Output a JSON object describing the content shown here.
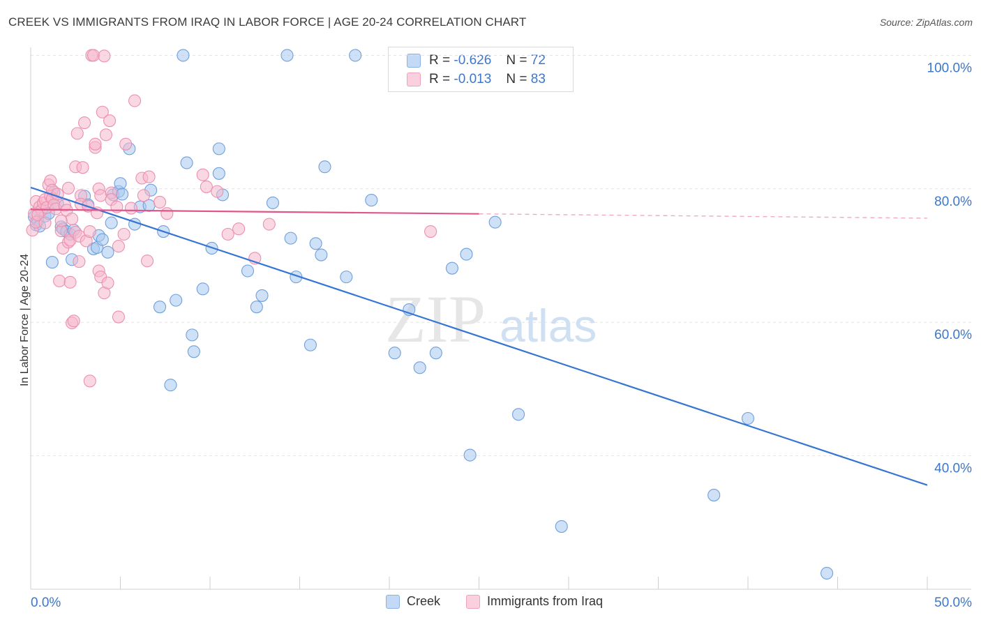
{
  "title": "CREEK VS IMMIGRANTS FROM IRAQ IN LABOR FORCE | AGE 20-24 CORRELATION CHART",
  "source": "Source: ZipAtlas.com",
  "watermark": {
    "zip": "ZIP",
    "atlas": "atlas"
  },
  "legend_stats": [
    {
      "r_label": "R =",
      "r_value": "-0.626",
      "n_label": "N =",
      "n_value": "72",
      "color": "#a8c8f0"
    },
    {
      "r_label": "R =",
      "r_value": "-0.013",
      "n_label": "N =",
      "n_value": "83",
      "color": "#f6b8cc"
    }
  ],
  "chart_data": {
    "type": "scatter",
    "title": "CREEK VS IMMIGRANTS FROM IRAQ IN LABOR FORCE | AGE 20-24 CORRELATION CHART",
    "xlabel": "",
    "ylabel": "In Labor Force | Age 20-24",
    "xlim": [
      0,
      50
    ],
    "ylim": [
      20,
      102
    ],
    "x_tick_labels": [
      "0.0%",
      "50.0%"
    ],
    "y_tick_labels": [
      {
        "value": 100,
        "label": "100.0%"
      },
      {
        "value": 80,
        "label": "80.0%"
      },
      {
        "value": 60,
        "label": "60.0%"
      },
      {
        "value": 40,
        "label": "40.0%"
      }
    ],
    "series": [
      {
        "name": "Creek",
        "color": "#a8c8f0",
        "edge": "#6f9fdc",
        "line_color": "#3575d3",
        "trend": {
          "x0": 0,
          "y0": 80.2,
          "x1": 50,
          "y1": 35.6,
          "solid_until": 50
        },
        "points": [
          [
            0.2,
            75.8
          ],
          [
            0.3,
            74.6
          ],
          [
            0.4,
            75.2
          ],
          [
            0.8,
            75.9
          ],
          [
            1.0,
            76.3
          ],
          [
            1.2,
            69.0
          ],
          [
            1.3,
            79.5
          ],
          [
            1.5,
            77.8
          ],
          [
            1.7,
            74.3
          ],
          [
            1.8,
            74.0
          ],
          [
            2.0,
            73.6
          ],
          [
            2.2,
            73.2
          ],
          [
            2.3,
            69.4
          ],
          [
            2.4,
            73.8
          ],
          [
            3.0,
            78.9
          ],
          [
            3.2,
            77.6
          ],
          [
            3.5,
            71.0
          ],
          [
            3.7,
            71.2
          ],
          [
            3.8,
            73.0
          ],
          [
            4.0,
            72.4
          ],
          [
            4.3,
            70.5
          ],
          [
            4.5,
            74.9
          ],
          [
            4.6,
            79.1
          ],
          [
            4.9,
            79.6
          ],
          [
            5.0,
            80.8
          ],
          [
            5.1,
            79.2
          ],
          [
            5.5,
            86.0
          ],
          [
            5.8,
            74.7
          ],
          [
            6.1,
            77.3
          ],
          [
            6.6,
            77.5
          ],
          [
            6.7,
            79.8
          ],
          [
            7.2,
            62.3
          ],
          [
            7.4,
            73.6
          ],
          [
            7.8,
            50.6
          ],
          [
            8.1,
            63.3
          ],
          [
            8.5,
            100.0
          ],
          [
            8.7,
            83.9
          ],
          [
            9.0,
            58.1
          ],
          [
            9.1,
            55.6
          ],
          [
            9.6,
            65.0
          ],
          [
            10.1,
            71.1
          ],
          [
            10.5,
            86.0
          ],
          [
            10.5,
            82.3
          ],
          [
            10.7,
            79.1
          ],
          [
            12.1,
            67.7
          ],
          [
            12.6,
            62.3
          ],
          [
            12.9,
            64.0
          ],
          [
            13.5,
            77.9
          ],
          [
            14.3,
            100.0
          ],
          [
            14.5,
            72.6
          ],
          [
            14.8,
            66.8
          ],
          [
            15.6,
            56.6
          ],
          [
            15.9,
            71.8
          ],
          [
            16.2,
            70.1
          ],
          [
            16.4,
            83.3
          ],
          [
            17.6,
            66.8
          ],
          [
            18.1,
            100.0
          ],
          [
            19.0,
            78.3
          ],
          [
            20.3,
            55.4
          ],
          [
            21.1,
            61.9
          ],
          [
            21.7,
            53.2
          ],
          [
            22.6,
            55.4
          ],
          [
            23.5,
            68.1
          ],
          [
            24.3,
            70.2
          ],
          [
            24.5,
            40.1
          ],
          [
            25.9,
            75.0
          ],
          [
            27.2,
            46.2
          ],
          [
            29.6,
            29.4
          ],
          [
            38.1,
            34.1
          ],
          [
            40.0,
            45.6
          ],
          [
            44.4,
            22.4
          ],
          [
            0.5,
            74.4
          ]
        ]
      },
      {
        "name": "Immigrants from Iraq",
        "color": "#f6b8cc",
        "edge": "#ec8fae",
        "line_color": "#e0558a",
        "trend": {
          "x0": 0,
          "y0": 76.9,
          "x1": 50,
          "y1": 75.6,
          "solid_until": 25
        },
        "points": [
          [
            0.1,
            73.8
          ],
          [
            0.2,
            76.3
          ],
          [
            0.3,
            75.0
          ],
          [
            0.3,
            78.1
          ],
          [
            0.5,
            77.3
          ],
          [
            0.6,
            76.8
          ],
          [
            0.7,
            77.9
          ],
          [
            0.8,
            78.4
          ],
          [
            0.9,
            77.2
          ],
          [
            1.0,
            80.6
          ],
          [
            1.1,
            81.2
          ],
          [
            1.1,
            78.9
          ],
          [
            1.2,
            79.8
          ],
          [
            1.2,
            78.5
          ],
          [
            1.3,
            77.6
          ],
          [
            1.4,
            77.0
          ],
          [
            1.5,
            79.2
          ],
          [
            1.6,
            66.2
          ],
          [
            1.7,
            73.7
          ],
          [
            1.8,
            71.1
          ],
          [
            1.9,
            77.5
          ],
          [
            2.0,
            76.8
          ],
          [
            2.1,
            80.1
          ],
          [
            2.1,
            72.0
          ],
          [
            2.2,
            66.0
          ],
          [
            2.2,
            72.3
          ],
          [
            2.3,
            75.5
          ],
          [
            2.3,
            59.9
          ],
          [
            2.4,
            60.2
          ],
          [
            2.5,
            73.5
          ],
          [
            2.5,
            83.3
          ],
          [
            2.6,
            88.3
          ],
          [
            2.7,
            72.9
          ],
          [
            2.8,
            79.0
          ],
          [
            2.8,
            77.7
          ],
          [
            2.9,
            83.2
          ],
          [
            3.0,
            89.9
          ],
          [
            3.1,
            72.2
          ],
          [
            3.2,
            77.4
          ],
          [
            3.3,
            73.6
          ],
          [
            3.3,
            51.2
          ],
          [
            3.4,
            100.0
          ],
          [
            3.5,
            100.0
          ],
          [
            3.6,
            86.2
          ],
          [
            3.6,
            86.7
          ],
          [
            3.7,
            76.4
          ],
          [
            3.8,
            67.7
          ],
          [
            3.8,
            80.0
          ],
          [
            3.9,
            79.0
          ],
          [
            3.9,
            66.8
          ],
          [
            4.0,
            91.5
          ],
          [
            4.1,
            99.9
          ],
          [
            4.1,
            64.4
          ],
          [
            4.2,
            88.1
          ],
          [
            4.3,
            65.9
          ],
          [
            4.4,
            90.2
          ],
          [
            4.5,
            79.4
          ],
          [
            4.5,
            78.4
          ],
          [
            4.8,
            77.3
          ],
          [
            4.9,
            60.8
          ],
          [
            5.2,
            73.2
          ],
          [
            5.3,
            86.7
          ],
          [
            5.6,
            77.1
          ],
          [
            5.8,
            93.2
          ],
          [
            6.2,
            81.6
          ],
          [
            6.3,
            79.0
          ],
          [
            6.5,
            69.2
          ],
          [
            6.6,
            81.8
          ],
          [
            7.2,
            78.0
          ],
          [
            7.6,
            76.3
          ],
          [
            9.6,
            82.1
          ],
          [
            9.8,
            80.3
          ],
          [
            10.4,
            79.6
          ],
          [
            11.0,
            73.2
          ],
          [
            11.6,
            74.0
          ],
          [
            12.5,
            69.6
          ],
          [
            13.3,
            74.7
          ],
          [
            22.3,
            73.6
          ],
          [
            0.4,
            76.1
          ],
          [
            1.7,
            75.2
          ],
          [
            0.8,
            74.9
          ],
          [
            2.7,
            69.1
          ],
          [
            4.9,
            71.4
          ]
        ]
      }
    ]
  }
}
